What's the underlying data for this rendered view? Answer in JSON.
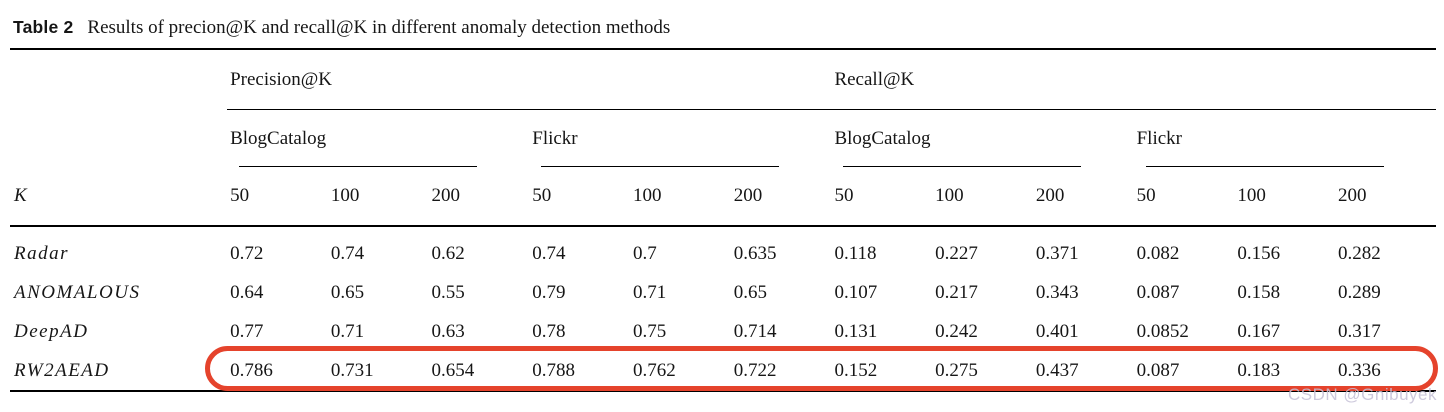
{
  "caption": {
    "label": "Table 2",
    "text": "Results of precion@K and recall@K in different anomaly detection methods"
  },
  "table": {
    "groups": [
      "Precision@K",
      "Recall@K"
    ],
    "datasets": [
      "BlogCatalog",
      "Flickr",
      "BlogCatalog",
      "Flickr"
    ],
    "k_label": "K",
    "k_values": [
      "50",
      "100",
      "200",
      "50",
      "100",
      "200",
      "50",
      "100",
      "200",
      "50",
      "100",
      "200"
    ],
    "rows": [
      {
        "method": "Radar",
        "values": [
          "0.72",
          "0.74",
          "0.62",
          "0.74",
          "0.7",
          "0.635",
          "0.118",
          "0.227",
          "0.371",
          "0.082",
          "0.156",
          "0.282"
        ],
        "highlighted": false
      },
      {
        "method": "ANOMALOUS",
        "values": [
          "0.64",
          "0.65",
          "0.55",
          "0.79",
          "0.71",
          "0.65",
          "0.107",
          "0.217",
          "0.343",
          "0.087",
          "0.158",
          "0.289"
        ],
        "highlighted": false
      },
      {
        "method": "DeepAD",
        "values": [
          "0.77",
          "0.71",
          "0.63",
          "0.78",
          "0.75",
          "0.714",
          "0.131",
          "0.242",
          "0.401",
          "0.0852",
          "0.167",
          "0.317"
        ],
        "highlighted": false
      },
      {
        "method": "RW2AEAD",
        "values": [
          "0.786",
          "0.731",
          "0.654",
          "0.788",
          "0.762",
          "0.722",
          "0.152",
          "0.275",
          "0.437",
          "0.087",
          "0.183",
          "0.336"
        ],
        "highlighted": true
      }
    ]
  },
  "watermark": "CSDN @Gnibuyek",
  "colors": {
    "highlight_border": "#e5432c",
    "watermark": "#c5c0d6",
    "rule": "#000000"
  }
}
